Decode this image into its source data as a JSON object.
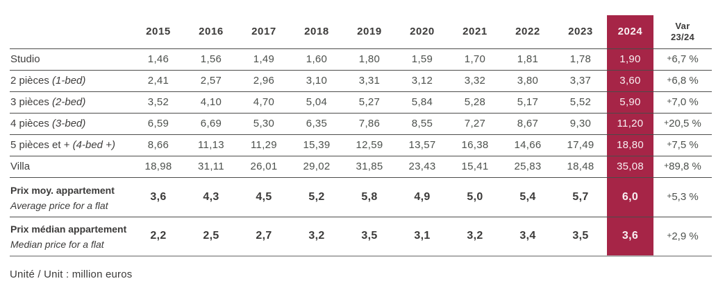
{
  "page": {
    "unit_note": "Unité / Unit : million euros"
  },
  "colors": {
    "accent": "#A62547",
    "highlight_text": "#F9F1F3",
    "text_dark": "#3B3A39",
    "text_num": "#4C504C",
    "row_line": "#4B4B49",
    "bottom_line": "#ADADAD"
  },
  "table": {
    "year_columns": [
      "2015",
      "2016",
      "2017",
      "2018",
      "2019",
      "2020",
      "2021",
      "2022",
      "2023",
      "2024"
    ],
    "highlight_year": "2024",
    "var_header": {
      "line1": "Var",
      "line2": "23/24"
    },
    "rows": [
      {
        "label_fr": "Studio",
        "label_en": "",
        "summary": false,
        "values": [
          "1,46",
          "1,56",
          "1,49",
          "1,60",
          "1,80",
          "1,59",
          "1,70",
          "1,81",
          "1,78",
          "1,90"
        ],
        "var": "+6,7 %"
      },
      {
        "label_fr": "2 pièces",
        "label_en": "(1-bed)",
        "summary": false,
        "values": [
          "2,41",
          "2,57",
          "2,96",
          "3,10",
          "3,31",
          "3,12",
          "3,32",
          "3,80",
          "3,37",
          "3,60"
        ],
        "var": "+6,8 %"
      },
      {
        "label_fr": "3 pièces",
        "label_en": "(2-bed)",
        "summary": false,
        "values": [
          "3,52",
          "4,10",
          "4,70",
          "5,04",
          "5,27",
          "5,84",
          "5,28",
          "5,17",
          "5,52",
          "5,90"
        ],
        "var": "+7,0 %"
      },
      {
        "label_fr": "4 pièces",
        "label_en": "(3-bed)",
        "summary": false,
        "values": [
          "6,59",
          "6,69",
          "5,30",
          "6,35",
          "7,86",
          "8,55",
          "7,27",
          "8,67",
          "9,30",
          "11,20"
        ],
        "var": "+20,5 %"
      },
      {
        "label_fr": "5 pièces et +",
        "label_en": "(4-bed +)",
        "summary": false,
        "values": [
          "8,66",
          "11,13",
          "11,29",
          "15,39",
          "12,59",
          "13,57",
          "16,38",
          "14,66",
          "17,49",
          "18,80"
        ],
        "var": "+7,5 %"
      },
      {
        "label_fr": "Villa",
        "label_en": "",
        "summary": false,
        "values": [
          "18,98",
          "31,11",
          "26,01",
          "29,02",
          "31,85",
          "23,43",
          "15,41",
          "25,83",
          "18,48",
          "35,08"
        ],
        "var": "+89,8 %"
      },
      {
        "label_fr": "Prix moy. appartement",
        "label_en": "Average price for a flat",
        "summary": true,
        "values": [
          "3,6",
          "4,3",
          "4,5",
          "5,2",
          "5,8",
          "4,9",
          "5,0",
          "5,4",
          "5,7",
          "6,0"
        ],
        "var": "+5,3 %"
      },
      {
        "label_fr": "Prix médian appartement",
        "label_en": "Median price for a flat",
        "summary": true,
        "values": [
          "2,2",
          "2,5",
          "2,7",
          "3,2",
          "3,5",
          "3,1",
          "3,2",
          "3,4",
          "3,5",
          "3,6"
        ],
        "var": "+2,9 %"
      }
    ]
  }
}
